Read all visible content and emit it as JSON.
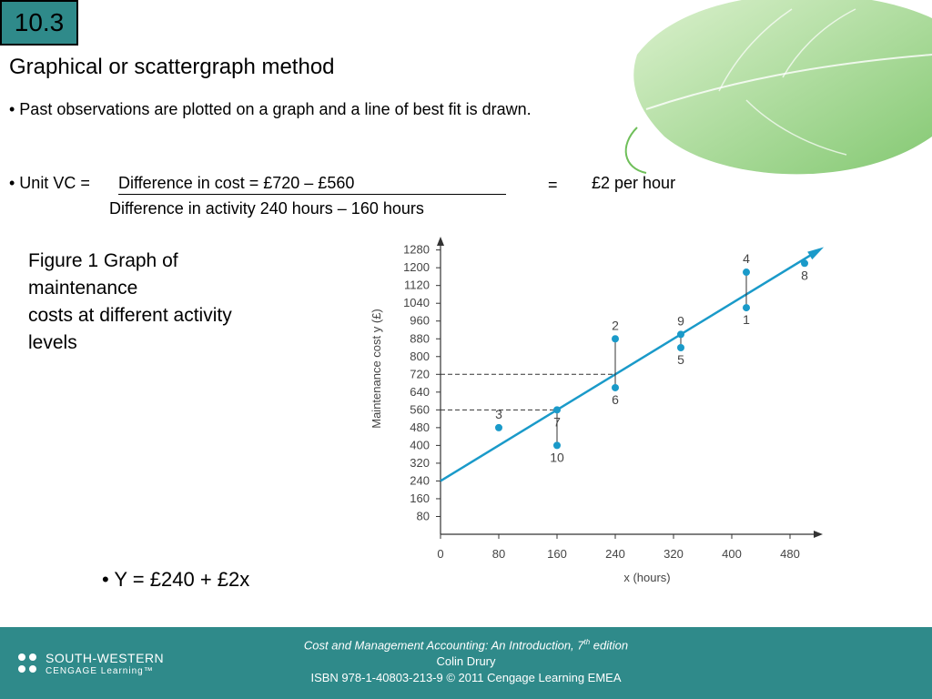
{
  "slide": {
    "number": "10.3",
    "title": "Graphical or scattergraph method",
    "bullet1": "• Past observations are plotted on a graph and a line of best fit is drawn.",
    "formula": {
      "label": "• Unit VC = ",
      "numerator": "Difference in cost = £720 – £560",
      "denominator": "Difference in activity 240 hours – 160 hours",
      "equals": "=",
      "result": "£2 per hour"
    },
    "figure_caption": {
      "line1": "Figure 1 Graph of",
      "line2": "maintenance",
      "line3": "costs at different activity",
      "line4": "levels"
    },
    "equation": "• Y =  £240 + £2x"
  },
  "footer": {
    "book_title": "Cost and Management Accounting: An Introduction, 7",
    "book_sup": "th",
    "book_suffix": " edition",
    "author": "Colin Drury",
    "isbn": "ISBN 978-1-40803-213-9 © 2011 Cengage Learning EMEA",
    "logo_line1": "SOUTH-WESTERN",
    "logo_line2": "CENGAGE Learning",
    "logo_tm": "™"
  },
  "colors": {
    "accent": "#2f8a8a",
    "series": "#1a9ac9",
    "leaf": "#7ec86a"
  },
  "chart_data": {
    "type": "scatter",
    "title": "",
    "xlabel": "x (hours)",
    "ylabel": "Maintenance cost y (£)",
    "xlim": [
      0,
      520
    ],
    "ylim": [
      0,
      1340
    ],
    "x_ticks": [
      0,
      80,
      160,
      240,
      320,
      400,
      480
    ],
    "y_ticks": [
      80,
      160,
      240,
      320,
      400,
      480,
      560,
      640,
      720,
      800,
      880,
      960,
      1040,
      1120,
      1200,
      1280
    ],
    "points": [
      {
        "label": "1",
        "x": 420,
        "y": 1020
      },
      {
        "label": "2",
        "x": 240,
        "y": 880
      },
      {
        "label": "3",
        "x": 80,
        "y": 480
      },
      {
        "label": "4",
        "x": 420,
        "y": 1180
      },
      {
        "label": "5",
        "x": 330,
        "y": 840
      },
      {
        "label": "6",
        "x": 240,
        "y": 660
      },
      {
        "label": "7",
        "x": 160,
        "y": 560
      },
      {
        "label": "8",
        "x": 500,
        "y": 1220
      },
      {
        "label": "9",
        "x": 330,
        "y": 900
      },
      {
        "label": "10",
        "x": 160,
        "y": 400
      }
    ],
    "best_fit": {
      "intercept": 240,
      "slope": 2
    },
    "reference_values": [
      {
        "x": 160,
        "y": 560
      },
      {
        "x": 240,
        "y": 720
      }
    ],
    "residual_links": [
      [
        "10",
        "7"
      ],
      [
        "2",
        "6"
      ],
      [
        "4",
        "1"
      ],
      [
        "9",
        "5"
      ]
    ]
  }
}
